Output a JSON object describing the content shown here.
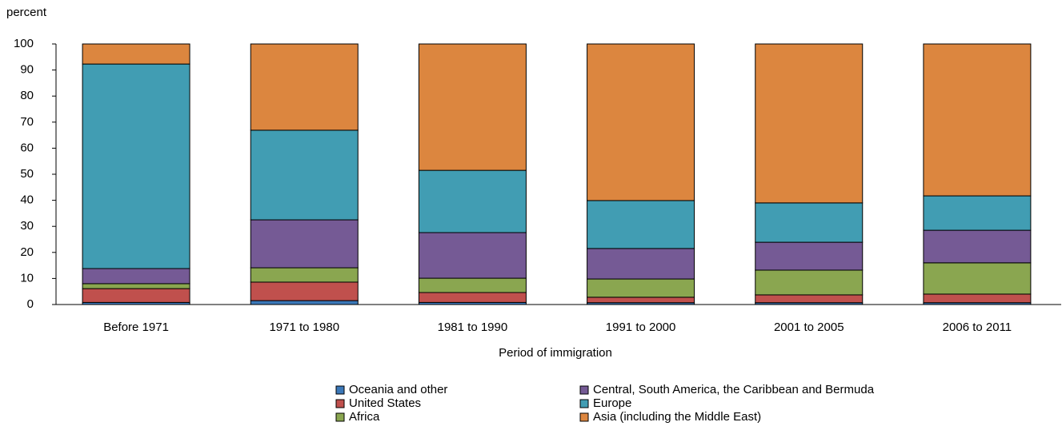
{
  "chart_data": {
    "type": "stacked-bar",
    "y_label": "percent",
    "x_label": "Period of immigration",
    "categories": [
      "Before 1971",
      "1971 to 1980",
      "1981 to 1990",
      "1991 to 2000",
      "2001 to 2005",
      "2006 to 2011"
    ],
    "series": [
      {
        "name": "Oceania and other",
        "color": "#3b78b8",
        "values": [
          0.8,
          1.5,
          0.8,
          0.7,
          0.7,
          0.7
        ]
      },
      {
        "name": "United States",
        "color": "#c0504d",
        "values": [
          5.3,
          7.1,
          3.8,
          2.1,
          3.0,
          3.3
        ]
      },
      {
        "name": "Africa",
        "color": "#8aa650",
        "values": [
          1.9,
          5.5,
          5.5,
          7.0,
          9.5,
          12.0
        ]
      },
      {
        "name": "Central, South America, the Caribbean and Bermuda",
        "color": "#755a95",
        "values": [
          5.8,
          18.4,
          17.5,
          11.7,
          10.7,
          12.5
        ]
      },
      {
        "name": "Europe",
        "color": "#419db3",
        "values": [
          78.5,
          34.4,
          23.9,
          18.4,
          15.1,
          13.2
        ]
      },
      {
        "name": "Asia (including the Middle East)",
        "color": "#dc863f",
        "values": [
          7.7,
          33.1,
          48.5,
          60.1,
          61.0,
          58.3
        ]
      }
    ],
    "ylim": [
      0,
      100
    ],
    "yticks": [
      0,
      10,
      20,
      30,
      40,
      50,
      60,
      70,
      80,
      90,
      100
    ]
  }
}
